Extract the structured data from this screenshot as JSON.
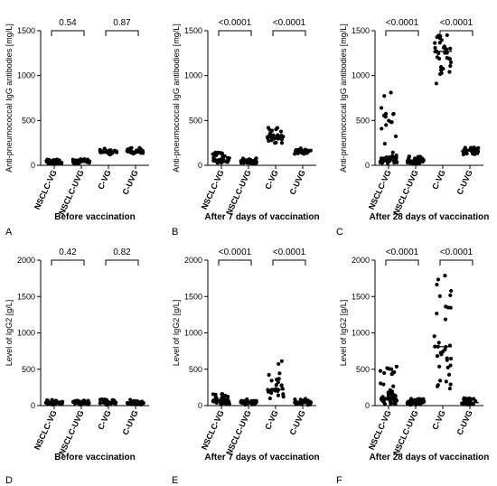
{
  "chart_data": [
    {
      "id": "A",
      "panel_label": "A",
      "type": "scatter",
      "title": "",
      "ylabel": "Anti-pneumococcal IgG antibodies [mg/L]",
      "xlabel": "Before vaccination",
      "ylim": [
        0,
        1500
      ],
      "yticks": [
        0,
        500,
        1000,
        1500
      ],
      "categories": [
        "NSCLC-VG",
        "NSCLC-UVG",
        "C-VG",
        "C-UVG"
      ],
      "groups": [
        {
          "name": "NSCLC-VG",
          "median": 40,
          "spread": [
            15,
            75
          ],
          "n": 40
        },
        {
          "name": "NSCLC-UVG",
          "median": 45,
          "spread": [
            20,
            70
          ],
          "n": 40
        },
        {
          "name": "C-VG",
          "median": 155,
          "spread": [
            120,
            190
          ],
          "n": 30
        },
        {
          "name": "C-UVG",
          "median": 160,
          "spread": [
            125,
            200
          ],
          "n": 30
        }
      ],
      "comparisons": [
        {
          "from": 0,
          "to": 1,
          "label": "0.54"
        },
        {
          "from": 2,
          "to": 3,
          "label": "0.87"
        }
      ]
    },
    {
      "id": "B",
      "panel_label": "B",
      "type": "scatter",
      "title": "",
      "ylabel": "Anti-pneumococcal IgG antibodies [mg/L]",
      "xlabel": "After 7 days of vaccination",
      "ylim": [
        0,
        1500
      ],
      "yticks": [
        0,
        500,
        1000,
        1500
      ],
      "categories": [
        "NSCLC-VG",
        "NSCLC-UVG",
        "C-VG",
        "C-UVG"
      ],
      "groups": [
        {
          "name": "NSCLC-VG",
          "median": 60,
          "spread": [
            20,
            150
          ],
          "n": 40
        },
        {
          "name": "NSCLC-UVG",
          "median": 45,
          "spread": [
            15,
            80
          ],
          "n": 40
        },
        {
          "name": "C-VG",
          "median": 330,
          "spread": [
            240,
            420
          ],
          "n": 35
        },
        {
          "name": "C-UVG",
          "median": 160,
          "spread": [
            120,
            200
          ],
          "n": 30
        }
      ],
      "comparisons": [
        {
          "from": 0,
          "to": 1,
          "label": "<0.0001"
        },
        {
          "from": 2,
          "to": 3,
          "label": "<0.0001"
        }
      ]
    },
    {
      "id": "C",
      "panel_label": "C",
      "type": "scatter",
      "title": "",
      "ylabel": "Anti-pneumococcal IgG antibodies [mg/L]",
      "xlabel": "After 28 days of vaccination",
      "ylim": [
        0,
        1500
      ],
      "yticks": [
        0,
        500,
        1000,
        1500
      ],
      "categories": [
        "NSCLC-VG",
        "NSCLC-UVG",
        "C-VG",
        "C-UVG"
      ],
      "groups": [
        {
          "name": "NSCLC-VG",
          "median": 90,
          "spread": [
            20,
            820
          ],
          "n": 50
        },
        {
          "name": "NSCLC-UVG",
          "median": 55,
          "spread": [
            15,
            110
          ],
          "n": 40
        },
        {
          "name": "C-VG",
          "median": 1270,
          "spread": [
            900,
            1480
          ],
          "n": 35
        },
        {
          "name": "C-UVG",
          "median": 160,
          "spread": [
            120,
            200
          ],
          "n": 30
        }
      ],
      "comparisons": [
        {
          "from": 0,
          "to": 1,
          "label": "<0.0001"
        },
        {
          "from": 2,
          "to": 3,
          "label": "<0.0001"
        }
      ]
    },
    {
      "id": "D",
      "panel_label": "D",
      "type": "scatter",
      "title": "",
      "ylabel": "Level of IgG2 [g/L]",
      "xlabel": "Before vaccination",
      "ylim": [
        0,
        2000
      ],
      "yticks": [
        0,
        500,
        1000,
        1500,
        2000
      ],
      "categories": [
        "NSCLC-VG",
        "NSCLC-UVG",
        "C-VG",
        "C-UVG"
      ],
      "groups": [
        {
          "name": "NSCLC-VG",
          "median": 40,
          "spread": [
            10,
            80
          ],
          "n": 40
        },
        {
          "name": "NSCLC-UVG",
          "median": 35,
          "spread": [
            10,
            70
          ],
          "n": 40
        },
        {
          "name": "C-VG",
          "median": 40,
          "spread": [
            10,
            90
          ],
          "n": 30
        },
        {
          "name": "C-UVG",
          "median": 35,
          "spread": [
            10,
            90
          ],
          "n": 30
        }
      ],
      "comparisons": [
        {
          "from": 0,
          "to": 1,
          "label": "0.42"
        },
        {
          "from": 2,
          "to": 3,
          "label": "0.82"
        }
      ]
    },
    {
      "id": "E",
      "panel_label": "E",
      "type": "scatter",
      "title": "",
      "ylabel": "Level of IgG2 [g/L]",
      "xlabel": "After 7 days of vaccination",
      "ylim": [
        0,
        2000
      ],
      "yticks": [
        0,
        500,
        1000,
        1500,
        2000
      ],
      "categories": [
        "NSCLC-VG",
        "NSCLC-UVG",
        "C-VG",
        "C-UVG"
      ],
      "groups": [
        {
          "name": "NSCLC-VG",
          "median": 70,
          "spread": [
            15,
            160
          ],
          "n": 45
        },
        {
          "name": "NSCLC-UVG",
          "median": 45,
          "spread": [
            10,
            90
          ],
          "n": 40
        },
        {
          "name": "C-VG",
          "median": 220,
          "spread": [
            30,
            650
          ],
          "n": 30
        },
        {
          "name": "C-UVG",
          "median": 45,
          "spread": [
            10,
            100
          ],
          "n": 30
        }
      ],
      "comparisons": [
        {
          "from": 0,
          "to": 1,
          "label": "<0.0001"
        },
        {
          "from": 2,
          "to": 3,
          "label": "<0.0001"
        }
      ]
    },
    {
      "id": "F",
      "panel_label": "F",
      "type": "scatter",
      "title": "",
      "ylabel": "Level of IgG2 [g/L]",
      "xlabel": "After 28 days of vaccination",
      "ylim": [
        0,
        2000
      ],
      "yticks": [
        0,
        500,
        1000,
        1500,
        2000
      ],
      "categories": [
        "NSCLC-VG",
        "NSCLC-UVG",
        "C-VG",
        "C-UVG"
      ],
      "groups": [
        {
          "name": "NSCLC-VG",
          "median": 100,
          "spread": [
            20,
            540
          ],
          "n": 55
        },
        {
          "name": "NSCLC-UVG",
          "median": 45,
          "spread": [
            10,
            100
          ],
          "n": 40
        },
        {
          "name": "C-VG",
          "median": 810,
          "spread": [
            200,
            1850
          ],
          "n": 35
        },
        {
          "name": "C-UVG",
          "median": 40,
          "spread": [
            10,
            110
          ],
          "n": 30
        }
      ],
      "comparisons": [
        {
          "from": 0,
          "to": 1,
          "label": "<0.0001"
        },
        {
          "from": 2,
          "to": 3,
          "label": "<0.0001"
        }
      ]
    }
  ]
}
